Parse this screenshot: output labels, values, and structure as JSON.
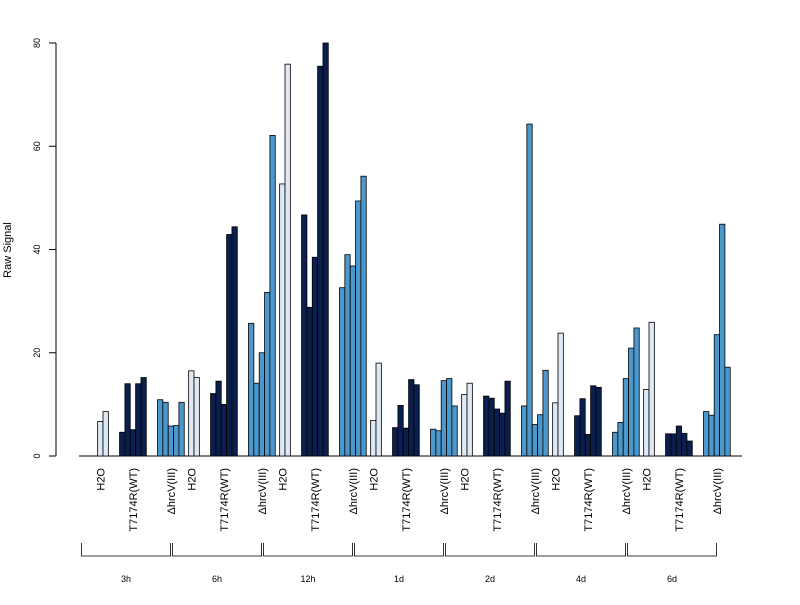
{
  "chart_data": {
    "type": "bar",
    "ylabel": "Raw Signal",
    "ylim": [
      0,
      80
    ],
    "yticks": [
      0,
      20,
      40,
      60,
      80
    ],
    "time_points": [
      "3h",
      "6h",
      "12h",
      "1d",
      "2d",
      "4d",
      "6d"
    ],
    "treatments": [
      "H2O",
      "T7174R(WT)",
      "ΔhrcV(III)"
    ],
    "colors": {
      "H2O": "#dfe9f5",
      "T7174R(WT)": "#0a1f4e",
      "ΔhrcV(III)": "#4c97cc"
    },
    "groups": [
      {
        "time": "3h",
        "treatment": "H2O",
        "values": [
          0,
          6.7,
          8.6
        ]
      },
      {
        "time": "3h",
        "treatment": "T7174R(WT)",
        "values": [
          4.6,
          14.0,
          5.1,
          14.0,
          15.2
        ]
      },
      {
        "time": "3h",
        "treatment": "ΔhrcV(III)",
        "values": [
          10.9,
          10.4,
          5.8,
          5.9,
          10.4
        ]
      },
      {
        "time": "6h",
        "treatment": "H2O",
        "values": [
          0,
          16.5,
          15.2
        ]
      },
      {
        "time": "6h",
        "treatment": "T7174R(WT)",
        "values": [
          12.1,
          14.5,
          10.0,
          42.9,
          44.4
        ]
      },
      {
        "time": "6h",
        "treatment": "ΔhrcV(III)",
        "values": [
          25.7,
          14.1,
          20.0,
          31.7,
          62.1
        ]
      },
      {
        "time": "12h",
        "treatment": "H2O",
        "values": [
          0,
          52.7,
          75.9
        ]
      },
      {
        "time": "12h",
        "treatment": "T7174R(WT)",
        "values": [
          46.7,
          28.8,
          38.5,
          75.5,
          80.0
        ]
      },
      {
        "time": "12h",
        "treatment": "ΔhrcV(III)",
        "values": [
          32.6,
          39.0,
          36.8,
          49.4,
          54.2
        ]
      },
      {
        "time": "1d",
        "treatment": "H2O",
        "values": [
          0,
          6.9,
          18.0
        ]
      },
      {
        "time": "1d",
        "treatment": "T7174R(WT)",
        "values": [
          5.5,
          9.8,
          5.4,
          14.8,
          13.8
        ]
      },
      {
        "time": "1d",
        "treatment": "ΔhrcV(III)",
        "values": [
          5.2,
          4.9,
          14.6,
          15.0,
          9.7
        ]
      },
      {
        "time": "2d",
        "treatment": "H2O",
        "values": [
          0,
          11.9,
          14.1
        ]
      },
      {
        "time": "2d",
        "treatment": "T7174R(WT)",
        "values": [
          11.6,
          11.2,
          9.1,
          8.3,
          14.5
        ]
      },
      {
        "time": "2d",
        "treatment": "ΔhrcV(III)",
        "values": [
          9.7,
          64.3,
          6.1,
          8.0,
          16.6
        ]
      },
      {
        "time": "4d",
        "treatment": "H2O",
        "values": [
          0,
          10.3,
          23.8
        ]
      },
      {
        "time": "4d",
        "treatment": "T7174R(WT)",
        "values": [
          7.8,
          11.1,
          4.2,
          13.6,
          13.3
        ]
      },
      {
        "time": "4d",
        "treatment": "ΔhrcV(III)",
        "values": [
          4.6,
          6.5,
          15.0,
          20.9,
          24.8
        ]
      },
      {
        "time": "6d",
        "treatment": "H2O",
        "values": [
          0,
          12.9,
          25.9
        ]
      },
      {
        "time": "6d",
        "treatment": "T7174R(WT)",
        "values": [
          4.3,
          4.3,
          5.8,
          4.4,
          2.9
        ]
      },
      {
        "time": "6d",
        "treatment": "ΔhrcV(III)",
        "values": [
          8.6,
          7.9,
          23.5,
          44.9,
          17.2
        ]
      }
    ],
    "grid": false,
    "legend": "none"
  }
}
